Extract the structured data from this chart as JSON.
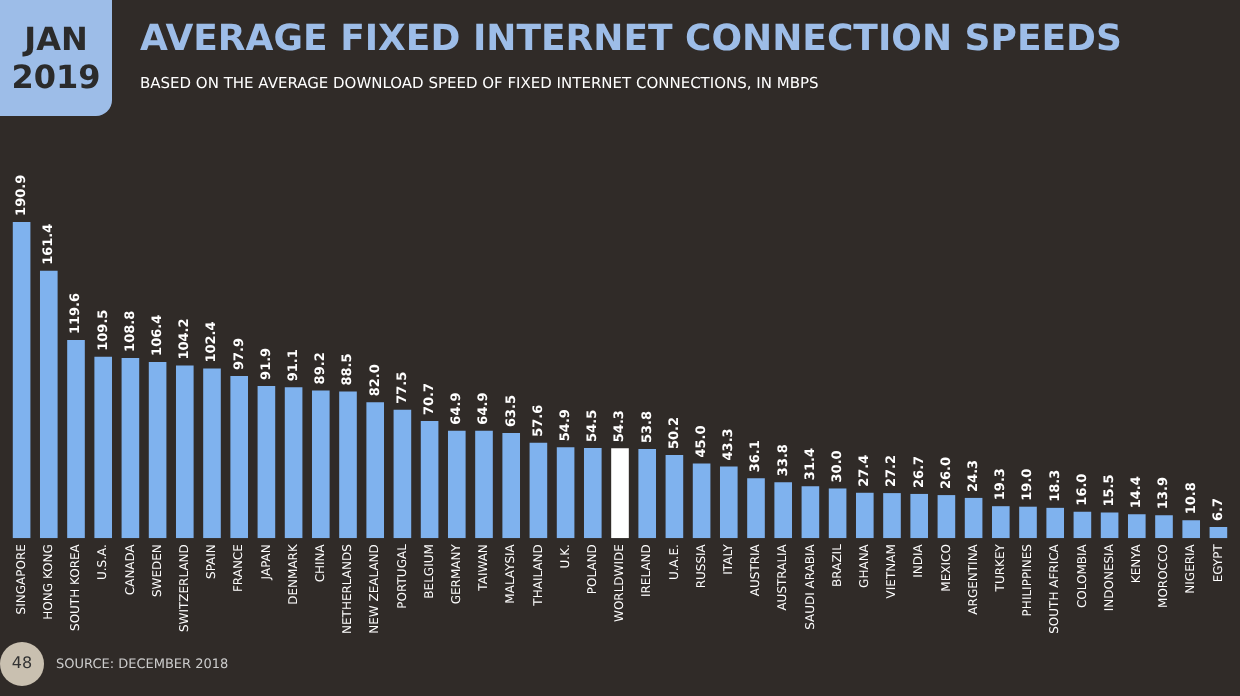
{
  "chart_data": {
    "type": "bar",
    "title": "AVERAGE FIXED INTERNET CONNECTION SPEEDS",
    "subtitle": "BASED ON THE AVERAGE DOWNLOAD SPEED OF FIXED INTERNET CONNECTIONS, IN MBPS",
    "annotations": [
      "JAN 2019",
      "48",
      "SOURCE: DECEMBER 2018"
    ],
    "categories": [
      "SINGAPORE",
      "HONG KONG",
      "SOUTH KOREA",
      "U.S.A.",
      "CANADA",
      "SWEDEN",
      "SWITZERLAND",
      "SPAIN",
      "FRANCE",
      "JAPAN",
      "DENMARK",
      "CHINA",
      "NETHERLANDS",
      "NEW ZEALAND",
      "PORTUGAL",
      "BELGIUM",
      "GERMANY",
      "TAIWAN",
      "MALAYSIA",
      "THAILAND",
      "U.K.",
      "POLAND",
      "WORLDWIDE",
      "IRELAND",
      "U.A.E.",
      "RUSSIA",
      "ITALY",
      "AUSTRIA",
      "AUSTRALIA",
      "SAUDI ARABIA",
      "BRAZIL",
      "GHANA",
      "VIETNAM",
      "INDIA",
      "MEXICO",
      "ARGENTINA",
      "TURKEY",
      "PHILIPPINES",
      "SOUTH AFRICA",
      "COLOMBIA",
      "INDONESIA",
      "KENYA",
      "MOROCCO",
      "NIGERIA",
      "EGYPT"
    ],
    "values": [
      190.9,
      161.4,
      119.6,
      109.5,
      108.8,
      106.4,
      104.2,
      102.4,
      97.9,
      91.9,
      91.1,
      89.2,
      88.5,
      82.0,
      77.5,
      70.7,
      64.9,
      64.9,
      63.5,
      57.6,
      54.9,
      54.5,
      54.3,
      53.8,
      50.2,
      45.0,
      43.3,
      36.1,
      33.8,
      31.4,
      30.0,
      27.4,
      27.2,
      26.7,
      26.0,
      24.3,
      19.3,
      19.0,
      18.3,
      16.0,
      15.5,
      14.4,
      13.9,
      10.8,
      6.7
    ],
    "value_labels": [
      "190.9",
      "161.4",
      "119.6",
      "109.5",
      "108.8",
      "106.4",
      "104.2",
      "102.4",
      "97.9",
      "91.9",
      "91.1",
      "89.2",
      "88.5",
      "82.0",
      "77.5",
      "70.7",
      "64.9",
      "64.9",
      "63.5",
      "57.6",
      "54.9",
      "54.5",
      "54.3",
      "53.8",
      "50.2",
      "45.0",
      "43.3",
      "36.1",
      "33.8",
      "31.4",
      "30.0",
      "27.4",
      "27.2",
      "26.7",
      "26.0",
      "24.3",
      "19.3",
      "19.0",
      "18.3",
      "16.0",
      "15.5",
      "14.4",
      "13.9",
      "10.8",
      "6.7"
    ],
    "colors": [
      "#7fb2ee",
      "#7fb2ee",
      "#7fb2ee",
      "#7fb2ee",
      "#7fb2ee",
      "#7fb2ee",
      "#7fb2ee",
      "#7fb2ee",
      "#7fb2ee",
      "#7fb2ee",
      "#7fb2ee",
      "#7fb2ee",
      "#7fb2ee",
      "#7fb2ee",
      "#7fb2ee",
      "#7fb2ee",
      "#7fb2ee",
      "#7fb2ee",
      "#7fb2ee",
      "#7fb2ee",
      "#7fb2ee",
      "#7fb2ee",
      "#ffffff",
      "#7fb2ee",
      "#7fb2ee",
      "#7fb2ee",
      "#7fb2ee",
      "#7fb2ee",
      "#7fb2ee",
      "#7fb2ee",
      "#7fb2ee",
      "#7fb2ee",
      "#7fb2ee",
      "#7fb2ee",
      "#7fb2ee",
      "#7fb2ee",
      "#7fb2ee",
      "#7fb2ee",
      "#7fb2ee",
      "#7fb2ee",
      "#7fb2ee",
      "#7fb2ee",
      "#7fb2ee",
      "#7fb2ee",
      "#7fb2ee"
    ],
    "legend": false,
    "tick_labels": "x"
  }
}
